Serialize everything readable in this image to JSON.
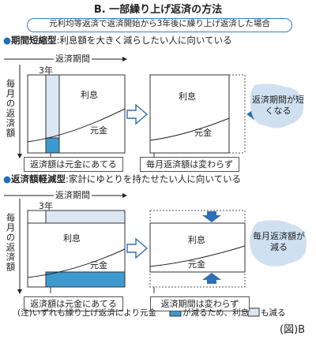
{
  "title": "B. 一部繰り上げ返済の方法",
  "subtitle": "元利均等返済で返済開始から3年後に繰り上げ返済した場合",
  "section_a": {
    "bullet": "●",
    "label": "期間短縮型",
    "desc": ":利息額を大きく減らしたい人に向いている",
    "period_label": "返済期間",
    "year_label": "3年",
    "y_axis": "毎月の返済額",
    "interest_label": "利息",
    "principal_label": "元金",
    "caption_left": "返済額は元金にあてる",
    "interest_label_right": "利息",
    "principal_label_right": "元金",
    "caption_right": "毎月返済額は変わらず",
    "callout": "返済期間が短くなる"
  },
  "section_b": {
    "bullet": "●",
    "label": "返済額軽減型",
    "desc": ":家計にゆとりを持たせたい人に向いている",
    "period_label": "返済期間",
    "year_label": "3年",
    "y_axis": "毎月の返済額",
    "interest_label": "利息",
    "principal_label": "元金",
    "caption_left": "返済額は元金にあてる",
    "interest_label_right": "利息",
    "principal_label_right": "元金",
    "caption_right": "返済期間は変わらず",
    "callout": "毎月返済額が減る"
  },
  "note": {
    "prefix": "(注)いずれも繰り上げ返済により元金",
    "middle": "が減るため、利息",
    "suffix": "も減る"
  },
  "figure_label": "(図)B",
  "colors": {
    "accent": "#2e7fc0",
    "principal_fill": "#3d9ad1",
    "interest_fill": "#dbe8f4",
    "callout_fill": "#cfe0f0",
    "arrow_fill": "#2f6fb5"
  }
}
